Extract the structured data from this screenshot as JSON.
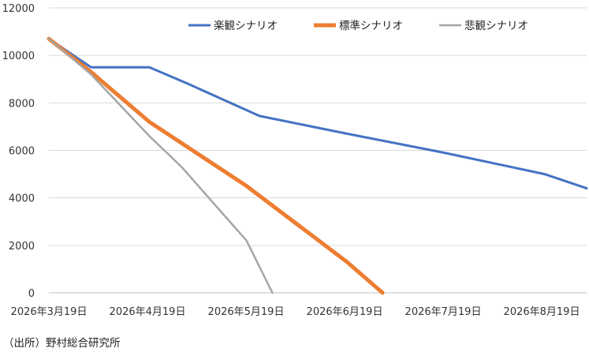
{
  "source_note": "（出所）野村総合研究所",
  "chart_data": {
    "type": "line",
    "x_tick_labels": [
      "2026年3月19日",
      "2026年4月19日",
      "2026年5月19日",
      "2026年6月19日",
      "2026年7月19日",
      "2026年8月19日"
    ],
    "x_range": [
      "2026-03-19",
      "2026-09-01"
    ],
    "ylim": [
      0,
      12000
    ],
    "y_ticks": [
      0,
      2000,
      4000,
      6000,
      8000,
      10000,
      12000
    ],
    "grid": true,
    "legend_position": "top",
    "series": [
      {
        "name": "楽観シナリオ",
        "color": "#4472C4",
        "points": [
          [
            "2026-03-19",
            10700
          ],
          [
            "2026-04-01",
            9500
          ],
          [
            "2026-04-19",
            9500
          ],
          [
            "2026-05-01",
            8800
          ],
          [
            "2026-05-23",
            7450
          ],
          [
            "2026-06-19",
            6700
          ],
          [
            "2026-07-19",
            5900
          ],
          [
            "2026-08-19",
            5000
          ],
          [
            "2026-09-01",
            4400
          ]
        ]
      },
      {
        "name": "標準シナリオ",
        "color": "#ED7D31",
        "points": [
          [
            "2026-03-19",
            10700
          ],
          [
            "2026-04-01",
            9300
          ],
          [
            "2026-04-19",
            7200
          ],
          [
            "2026-05-19",
            4500
          ],
          [
            "2026-06-19",
            1300
          ],
          [
            "2026-06-30",
            0
          ]
        ]
      },
      {
        "name": "悲観シナリオ",
        "color": "#A5A5A5",
        "points": [
          [
            "2026-03-19",
            10700
          ],
          [
            "2026-04-01",
            9200
          ],
          [
            "2026-04-19",
            6600
          ],
          [
            "2026-04-29",
            5300
          ],
          [
            "2026-05-19",
            2200
          ],
          [
            "2026-05-27",
            0
          ]
        ]
      }
    ]
  }
}
